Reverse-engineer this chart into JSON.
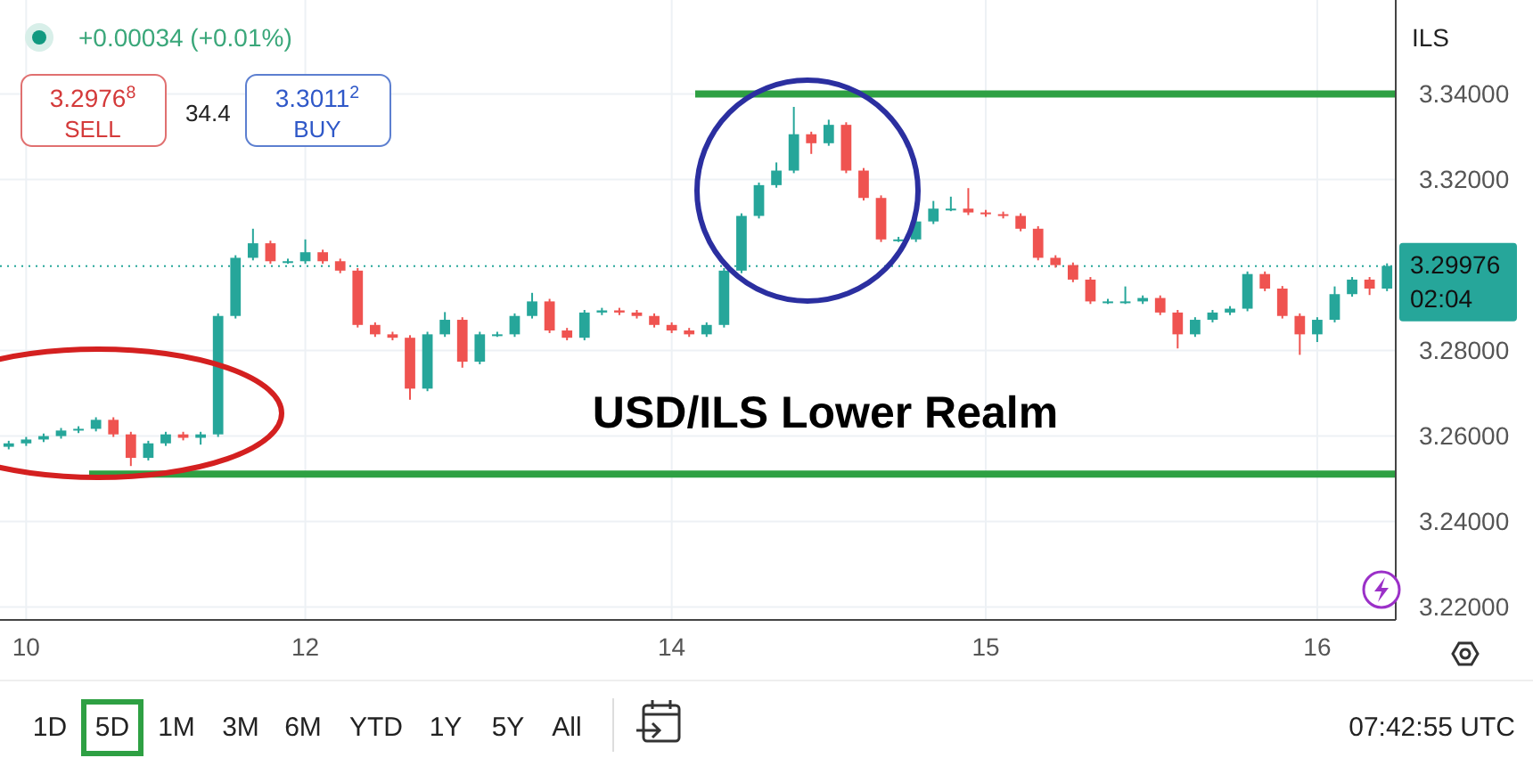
{
  "chart_data": {
    "type": "candlestick",
    "title": "USD/ILS Lower Realm",
    "categories": [
      null,
      "10",
      null,
      null,
      null,
      null,
      null,
      null,
      null,
      null,
      null,
      null,
      null,
      null,
      null,
      null,
      null,
      "12",
      null,
      null,
      null,
      null,
      null,
      null,
      null,
      null,
      null,
      null,
      null,
      null,
      null,
      null,
      null,
      null,
      null,
      null,
      null,
      null,
      "14",
      null,
      null,
      null,
      null,
      null,
      null,
      null,
      null,
      null,
      null,
      null,
      null,
      null,
      null,
      null,
      null,
      null,
      "15",
      null,
      null,
      null,
      null,
      null,
      null,
      null,
      null,
      null,
      null,
      null,
      null,
      null,
      null,
      null,
      null,
      null,
      null,
      "16",
      null,
      null,
      null,
      null
    ],
    "ohlc": [
      [
        3.2575,
        3.2589,
        3.2569,
        3.2583
      ],
      [
        3.2583,
        3.2598,
        3.2577,
        3.2592
      ],
      [
        3.2592,
        3.2606,
        3.2586,
        3.26
      ],
      [
        3.26,
        3.2619,
        3.2594,
        3.2613
      ],
      [
        3.2613,
        3.2623,
        3.2607,
        3.2617
      ],
      [
        3.2617,
        3.2644,
        3.2611,
        3.2638
      ],
      [
        3.2638,
        3.2644,
        3.2598,
        3.2604
      ],
      [
        3.2604,
        3.261,
        3.253,
        3.2549
      ],
      [
        3.2549,
        3.2589,
        3.2543,
        3.2583
      ],
      [
        3.2583,
        3.261,
        3.2577,
        3.2604
      ],
      [
        3.2604,
        3.261,
        3.259,
        3.2596
      ],
      [
        3.2596,
        3.261,
        3.258,
        3.2604
      ],
      [
        3.2604,
        3.2887,
        3.2598,
        3.2881
      ],
      [
        3.2881,
        3.3023,
        3.2875,
        3.3017
      ],
      [
        3.3017,
        3.3085,
        3.3011,
        3.3051
      ],
      [
        3.3051,
        3.3057,
        3.3003,
        3.3009
      ],
      [
        3.3009,
        3.3015,
        3.3003,
        3.3009
      ],
      [
        3.3009,
        3.306,
        3.3003,
        3.303
      ],
      [
        3.303,
        3.3036,
        3.3003,
        3.3009
      ],
      [
        3.3009,
        3.3015,
        3.2981,
        3.2987
      ],
      [
        3.2987,
        3.2993,
        3.2854,
        3.286
      ],
      [
        3.286,
        3.2866,
        3.2832,
        3.2838
      ],
      [
        3.2838,
        3.2844,
        3.2824,
        3.283
      ],
      [
        3.283,
        3.2836,
        3.2685,
        3.2711
      ],
      [
        3.2711,
        3.2844,
        3.2705,
        3.2838
      ],
      [
        3.2838,
        3.289,
        3.2832,
        3.2872
      ],
      [
        3.2872,
        3.2878,
        3.276,
        3.2774
      ],
      [
        3.2774,
        3.2844,
        3.2768,
        3.2838
      ],
      [
        3.2838,
        3.2844,
        3.2832,
        3.2838
      ],
      [
        3.2838,
        3.2887,
        3.2832,
        3.2881
      ],
      [
        3.2881,
        3.2935,
        3.2875,
        3.2915
      ],
      [
        3.2915,
        3.2921,
        3.2841,
        3.2847
      ],
      [
        3.2847,
        3.2853,
        3.2824,
        3.283
      ],
      [
        3.283,
        3.2895,
        3.2824,
        3.2889
      ],
      [
        3.2889,
        3.29,
        3.2883,
        3.2894
      ],
      [
        3.2894,
        3.29,
        3.2883,
        3.2889
      ],
      [
        3.2889,
        3.2895,
        3.2875,
        3.2881
      ],
      [
        3.2881,
        3.2887,
        3.2854,
        3.286
      ],
      [
        3.286,
        3.2866,
        3.2841,
        3.2847
      ],
      [
        3.2847,
        3.2853,
        3.2832,
        3.2838
      ],
      [
        3.2838,
        3.2866,
        3.2832,
        3.286
      ],
      [
        3.286,
        3.2993,
        3.2854,
        3.2987
      ],
      [
        3.2987,
        3.3121,
        3.2981,
        3.3115
      ],
      [
        3.3115,
        3.3193,
        3.3109,
        3.3187
      ],
      [
        3.3187,
        3.324,
        3.3181,
        3.3221
      ],
      [
        3.3221,
        3.337,
        3.3215,
        3.3306
      ],
      [
        3.3306,
        3.3312,
        3.326,
        3.3285
      ],
      [
        3.3285,
        3.334,
        3.3279,
        3.3328
      ],
      [
        3.3328,
        3.3334,
        3.3215,
        3.3221
      ],
      [
        3.3221,
        3.3227,
        3.3151,
        3.3157
      ],
      [
        3.3157,
        3.3163,
        3.3054,
        3.306
      ],
      [
        3.306,
        3.3066,
        3.3054,
        3.306
      ],
      [
        3.306,
        3.3108,
        3.3054,
        3.3102
      ],
      [
        3.3102,
        3.315,
        3.3096,
        3.3132
      ],
      [
        3.3132,
        3.316,
        3.3126,
        3.3132
      ],
      [
        3.3132,
        3.318,
        3.3117,
        3.3123
      ],
      [
        3.3123,
        3.3129,
        3.3113,
        3.3119
      ],
      [
        3.3119,
        3.3125,
        3.3109,
        3.3115
      ],
      [
        3.3115,
        3.3121,
        3.3079,
        3.3085
      ],
      [
        3.3085,
        3.3091,
        3.3011,
        3.3017
      ],
      [
        3.3017,
        3.3023,
        3.2994,
        3.3
      ],
      [
        3.3,
        3.3006,
        3.296,
        3.2966
      ],
      [
        3.2966,
        3.2972,
        3.2909,
        3.2915
      ],
      [
        3.2915,
        3.2921,
        3.2909,
        3.2915
      ],
      [
        3.2915,
        3.295,
        3.2909,
        3.2915
      ],
      [
        3.2915,
        3.2929,
        3.2909,
        3.2923
      ],
      [
        3.2923,
        3.2929,
        3.2883,
        3.2889
      ],
      [
        3.2889,
        3.2895,
        3.2805,
        3.2838
      ],
      [
        3.2838,
        3.2878,
        3.2832,
        3.2872
      ],
      [
        3.2872,
        3.2895,
        3.2866,
        3.2889
      ],
      [
        3.2889,
        3.2904,
        3.2883,
        3.2898
      ],
      [
        3.2898,
        3.2985,
        3.2892,
        3.2979
      ],
      [
        3.2979,
        3.2985,
        3.2939,
        3.2945
      ],
      [
        3.2945,
        3.2951,
        3.2875,
        3.2881
      ],
      [
        3.2881,
        3.2887,
        3.279,
        3.2838
      ],
      [
        3.2838,
        3.2878,
        3.282,
        3.2872
      ],
      [
        3.2872,
        3.295,
        3.2866,
        3.2932
      ],
      [
        3.2932,
        3.2972,
        3.2926,
        3.2966
      ],
      [
        3.2966,
        3.2972,
        3.293,
        3.2945
      ],
      [
        3.2945,
        3.3004,
        3.2939,
        3.2998
      ]
    ],
    "ylim": [
      3.217,
      3.362
    ],
    "yticks": [
      {
        "value": 3.22,
        "label": "3.22000"
      },
      {
        "value": 3.24,
        "label": "3.24000"
      },
      {
        "value": 3.26,
        "label": "3.26000"
      },
      {
        "value": 3.28,
        "label": "3.28000"
      },
      {
        "value": 3.32,
        "label": "3.32000"
      },
      {
        "value": 3.34,
        "label": "3.34000"
      }
    ],
    "grid": true,
    "ref_lines": [
      {
        "axis": "y",
        "value": 3.34,
        "color": "#2ea043",
        "line_style": "solid"
      },
      {
        "axis": "y",
        "value": 3.2511,
        "color": "#2ea043",
        "line_style": "solid"
      },
      {
        "axis": "y",
        "value": 3.29976,
        "label": "3.29976",
        "color": "#26a69a",
        "line_style": "dotted"
      }
    ],
    "annotations": [
      "+0.00034 (+0.01%)",
      "3.2976$^{8}$",
      "SELL",
      "34.4",
      "3.3011$^{2}$",
      "BUY",
      "ILS",
      "02:04",
      "1D",
      "5D",
      "1M",
      "3M",
      "6M",
      "YTD",
      "1Y",
      "5Y",
      "All",
      "07:42:55 UTC"
    ]
  }
}
